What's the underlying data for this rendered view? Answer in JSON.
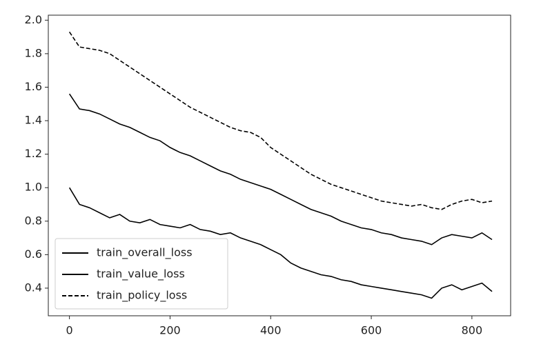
{
  "chart_data": {
    "type": "line",
    "x": [
      0,
      20,
      40,
      60,
      80,
      100,
      120,
      140,
      160,
      180,
      200,
      220,
      240,
      260,
      280,
      300,
      320,
      340,
      360,
      380,
      400,
      420,
      440,
      460,
      480,
      500,
      520,
      540,
      560,
      580,
      600,
      620,
      640,
      660,
      680,
      700,
      720,
      740,
      760,
      780,
      800,
      820,
      840
    ],
    "series": [
      {
        "name": "train_overall_loss",
        "color": "#000000",
        "linestyle": "-",
        "values": [
          1.56,
          1.47,
          1.46,
          1.44,
          1.41,
          1.38,
          1.36,
          1.33,
          1.3,
          1.28,
          1.24,
          1.21,
          1.19,
          1.16,
          1.13,
          1.1,
          1.08,
          1.05,
          1.03,
          1.01,
          0.99,
          0.96,
          0.93,
          0.9,
          0.87,
          0.85,
          0.83,
          0.8,
          0.78,
          0.76,
          0.75,
          0.73,
          0.72,
          0.7,
          0.69,
          0.68,
          0.66,
          0.7,
          0.72,
          0.71,
          0.7,
          0.73,
          0.69
        ]
      },
      {
        "name": "train_value_loss",
        "color": "#000000",
        "linestyle": "-",
        "values": [
          1.0,
          0.9,
          0.88,
          0.85,
          0.82,
          0.84,
          0.8,
          0.79,
          0.81,
          0.78,
          0.77,
          0.76,
          0.78,
          0.75,
          0.74,
          0.72,
          0.73,
          0.7,
          0.68,
          0.66,
          0.63,
          0.6,
          0.55,
          0.52,
          0.5,
          0.48,
          0.47,
          0.45,
          0.44,
          0.42,
          0.41,
          0.4,
          0.39,
          0.38,
          0.37,
          0.36,
          0.34,
          0.4,
          0.42,
          0.39,
          0.41,
          0.43,
          0.38
        ]
      },
      {
        "name": "train_policy_loss",
        "color": "#000000",
        "linestyle": "--",
        "values": [
          1.93,
          1.84,
          1.83,
          1.82,
          1.8,
          1.76,
          1.72,
          1.68,
          1.64,
          1.6,
          1.56,
          1.52,
          1.48,
          1.45,
          1.42,
          1.39,
          1.36,
          1.34,
          1.33,
          1.3,
          1.24,
          1.2,
          1.16,
          1.12,
          1.08,
          1.05,
          1.02,
          1.0,
          0.98,
          0.96,
          0.94,
          0.92,
          0.91,
          0.9,
          0.89,
          0.9,
          0.88,
          0.87,
          0.9,
          0.92,
          0.93,
          0.91,
          0.92
        ]
      }
    ],
    "xlim": [
      -42,
      877
    ],
    "ylim": [
      0.235,
      2.03
    ],
    "xticks": [
      0,
      200,
      400,
      600,
      800
    ],
    "yticks": [
      0.4,
      0.6,
      0.8,
      {
        "value": 1.0,
        "label": "1.0"
      },
      1.2,
      1.4,
      1.6,
      1.8,
      {
        "value": 2.0,
        "label": "2.0"
      }
    ],
    "grid": false,
    "legend": "lower left"
  }
}
